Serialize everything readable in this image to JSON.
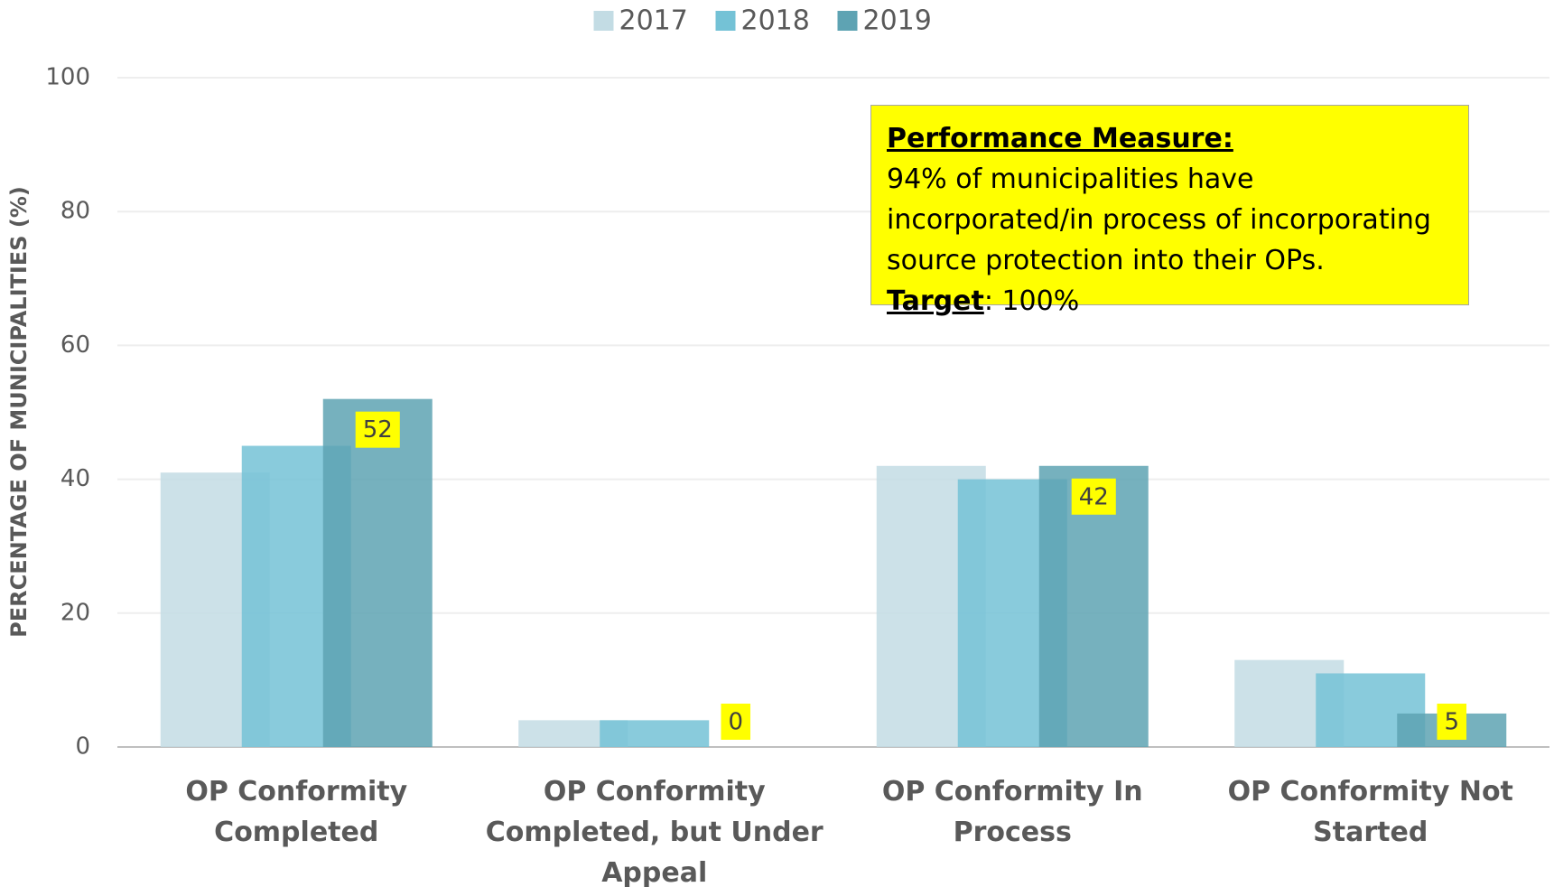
{
  "chart_data": {
    "type": "bar",
    "y_axis_label": "PERCENTAGE OF MUNICIPALITIES (%)",
    "categories": [
      "OP Conformity Completed",
      "OP Conformity Completed, but Under Appeal",
      "OP Conformity In Process",
      "OP Conformity Not Started"
    ],
    "series": [
      {
        "name": "2017",
        "color": "#c3dce4",
        "values": [
          41,
          4,
          42,
          13
        ]
      },
      {
        "name": "2018",
        "color": "#74c2d6",
        "values": [
          45,
          4,
          40,
          11
        ]
      },
      {
        "name": "2019",
        "color": "#5ea3b3",
        "values": [
          52,
          0,
          42,
          5
        ],
        "show_value_labels": true
      }
    ],
    "ylim": [
      0,
      100
    ],
    "yticks": [
      0,
      20,
      40,
      60,
      80,
      100
    ],
    "grid": true,
    "legend": "top",
    "annotation": {
      "heading": "Performance Measure:",
      "text": "94% of municipalities have incorporated/in process of incorporating source protection into their OPs.",
      "target_label": "Target",
      "target_text": ": 100%"
    }
  }
}
